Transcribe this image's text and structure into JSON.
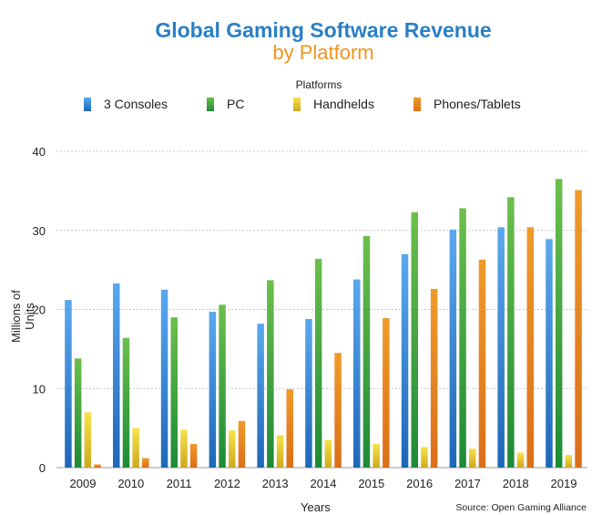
{
  "chart_data": {
    "type": "bar",
    "title": "Global Gaming Software Revenue",
    "subtitle": "by Platform",
    "legend_title": "Platforms",
    "legend_placement": "top",
    "xlabel": "Years",
    "ylabel": "Millions of Units",
    "source": "Source: Open Gaming Alliance",
    "ylim": [
      0,
      40
    ],
    "yticks": [
      "0",
      "10",
      "20",
      "30",
      "40"
    ],
    "grid": true,
    "categories": [
      "2009",
      "2010",
      "2011",
      "2012",
      "2013",
      "2014",
      "2015",
      "2016",
      "2017",
      "2018",
      "2019"
    ],
    "series": [
      {
        "name": "3 Consoles",
        "color": "#3a8ee0",
        "values": [
          21.2,
          23.3,
          22.5,
          19.7,
          18.2,
          18.8,
          23.8,
          27.0,
          30.1,
          30.4,
          28.9
        ]
      },
      {
        "name": "PC",
        "color": "#3ea33e",
        "values": [
          13.8,
          16.4,
          19.0,
          20.6,
          23.7,
          26.4,
          29.3,
          32.3,
          32.8,
          34.2,
          36.5
        ]
      },
      {
        "name": "Handhelds",
        "color": "#ecd12a",
        "values": [
          7.0,
          5.0,
          4.8,
          4.7,
          4.1,
          3.5,
          3.0,
          2.6,
          2.4,
          1.9,
          1.6
        ]
      },
      {
        "name": "Phones/Tablets",
        "color": "#e8861f",
        "values": [
          0.4,
          1.2,
          3.0,
          5.9,
          9.9,
          14.5,
          18.9,
          22.6,
          26.3,
          30.4,
          35.1
        ]
      }
    ]
  }
}
